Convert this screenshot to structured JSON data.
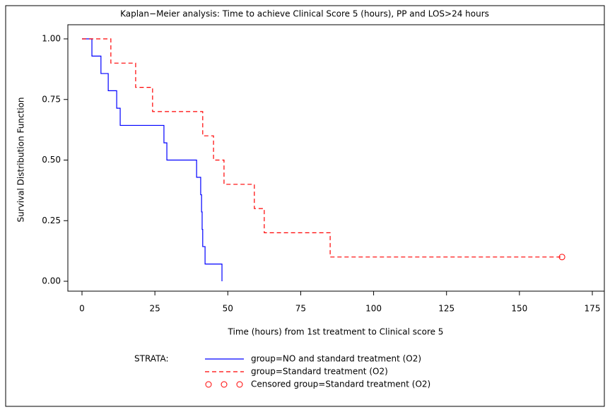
{
  "chart_data": {
    "type": "step",
    "title": "Kaplan−Meier analysis: Time to achieve Clinical Score 5 (hours), PP and LOS>24 hours",
    "x_label": "Time (hours) from 1st treatment to Clinical score 5",
    "y_label": "Survival Distribution Function",
    "legend_title": "STRATA:",
    "series": [
      {
        "name": "group=NO and standard treatment (O2)",
        "color": "#0000ff",
        "dash": false,
        "x": [
          0,
          3.4,
          6.5,
          9.0,
          11.9,
          13.1,
          28.1,
          29.1,
          39.3,
          40.7,
          41.0,
          41.2,
          41.4,
          42.2,
          48.0
        ],
        "values": [
          1.0,
          0.929,
          0.857,
          0.786,
          0.714,
          0.643,
          0.571,
          0.5,
          0.429,
          0.357,
          0.286,
          0.214,
          0.143,
          0.071,
          0
        ]
      },
      {
        "name": "group=Standard treatment (O2)",
        "color": "#ff0000",
        "dash": true,
        "x": [
          0,
          9.9,
          18.4,
          24.2,
          41.4,
          45.1,
          48.7,
          59.1,
          62.5,
          85.1,
          164.6
        ],
        "values": [
          1.0,
          0.9,
          0.8,
          0.7,
          0.6,
          0.5,
          0.4,
          0.3,
          0.2,
          0.1,
          0.1
        ]
      }
    ],
    "censored": {
      "name": "Censored group=Standard treatment (O2)",
      "color": "#ff0000",
      "x": [
        164.6
      ],
      "values": [
        0.1
      ]
    },
    "xlim": [
      0,
      175
    ],
    "xticks": [
      0,
      25,
      50,
      75,
      100,
      125,
      150,
      175
    ],
    "ylim": [
      0,
      1
    ],
    "yticks": [
      {
        "value": 0,
        "label": "0.00"
      },
      {
        "value": 0.25,
        "label": "0.25"
      },
      {
        "value": 0.5,
        "label": "0.50"
      },
      {
        "value": 0.75,
        "label": "0.75"
      },
      {
        "value": 1,
        "label": "1.00"
      }
    ]
  }
}
